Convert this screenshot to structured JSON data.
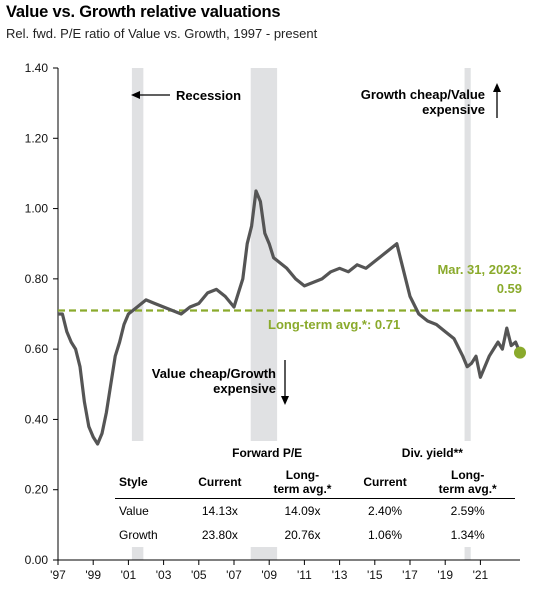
{
  "chart_data": {
    "type": "line",
    "title": "Value vs. Growth relative valuations",
    "subtitle": "Rel. fwd. P/E ratio of Value vs. Growth, 1997 - present",
    "ylim": [
      0,
      1.4
    ],
    "y_ticks": [
      "0.00",
      "0.20",
      "0.40",
      "0.60",
      "0.80",
      "1.00",
      "1.20",
      "1.40"
    ],
    "x_range": [
      1997.0,
      2023.25
    ],
    "x_ticks": [
      "'97",
      "'99",
      "'01",
      "'03",
      "'05",
      "'07",
      "'09",
      "'11",
      "'13",
      "'15",
      "'17",
      "'19",
      "'21"
    ],
    "series": [
      {
        "color": "#555555",
        "x": [
          1997.0,
          1997.25,
          1997.5,
          1997.75,
          1998.0,
          1998.25,
          1998.5,
          1998.75,
          1999.0,
          1999.25,
          1999.5,
          1999.75,
          2000.0,
          2000.25,
          2000.5,
          2000.75,
          2001.0,
          2001.5,
          2002.0,
          2002.5,
          2003.0,
          2003.5,
          2004.0,
          2004.5,
          2005.0,
          2005.5,
          2006.0,
          2006.5,
          2007.0,
          2007.25,
          2007.5,
          2007.75,
          2008.0,
          2008.25,
          2008.5,
          2008.75,
          2009.0,
          2009.25,
          2009.5,
          2010.0,
          2010.5,
          2011.0,
          2011.5,
          2012.0,
          2012.5,
          2013.0,
          2013.5,
          2014.0,
          2014.5,
          2015.0,
          2015.5,
          2016.0,
          2016.25,
          2016.5,
          2017.0,
          2017.5,
          2018.0,
          2018.5,
          2019.0,
          2019.5,
          2020.0,
          2020.25,
          2020.5,
          2020.75,
          2021.0,
          2021.25,
          2021.5,
          2021.75,
          2022.0,
          2022.25,
          2022.5,
          2022.75,
          2023.0,
          2023.25
        ],
        "values": [
          0.7,
          0.7,
          0.65,
          0.62,
          0.6,
          0.55,
          0.45,
          0.38,
          0.35,
          0.33,
          0.36,
          0.42,
          0.5,
          0.58,
          0.62,
          0.67,
          0.7,
          0.72,
          0.74,
          0.73,
          0.72,
          0.71,
          0.7,
          0.72,
          0.73,
          0.76,
          0.77,
          0.75,
          0.72,
          0.76,
          0.8,
          0.9,
          0.95,
          1.05,
          1.02,
          0.93,
          0.9,
          0.86,
          0.85,
          0.83,
          0.8,
          0.78,
          0.79,
          0.8,
          0.82,
          0.83,
          0.82,
          0.84,
          0.83,
          0.85,
          0.87,
          0.89,
          0.9,
          0.85,
          0.75,
          0.7,
          0.68,
          0.67,
          0.65,
          0.63,
          0.58,
          0.55,
          0.56,
          0.58,
          0.52,
          0.55,
          0.58,
          0.6,
          0.62,
          0.6,
          0.66,
          0.61,
          0.62,
          0.59
        ]
      }
    ],
    "longterm_avg": 0.71,
    "recessions": [
      [
        2001.2,
        2001.85
      ],
      [
        2007.95,
        2009.45
      ],
      [
        2020.1,
        2020.45
      ]
    ],
    "current": {
      "x": 2023.25,
      "value": 0.59
    },
    "annotations": {
      "recession": "Recession",
      "growth_cheap_1": "Growth cheap/Value",
      "growth_cheap_2": "expensive",
      "value_cheap_1": "Value cheap/Growth",
      "value_cheap_2": "expensive",
      "current_date": "Mar. 31, 2023:",
      "current_value": "0.59",
      "longterm": "Long-term avg.*:  0.71"
    },
    "colors": {
      "line": "#555555",
      "avg": "#8aaa2c",
      "recession": "#e0e1e3"
    },
    "grid": false
  },
  "table": {
    "group_fpe": "Forward P/E",
    "group_div": "Div. yield**",
    "col_style": "Style",
    "col_current": "Current",
    "col_lta_1": "Long-",
    "col_lta_2": "term avg.*",
    "col_current2": "Current",
    "col_lta2_1": "Long-",
    "col_lta2_2": "term avg.*",
    "rows": [
      {
        "style": "Value",
        "fpe_current": "14.13x",
        "fpe_lta": "14.09x",
        "div_current": "2.40%",
        "div_lta": "2.59%"
      },
      {
        "style": "Growth",
        "fpe_current": "23.80x",
        "fpe_lta": "20.76x",
        "div_current": "1.06%",
        "div_lta": "1.34%"
      }
    ]
  }
}
